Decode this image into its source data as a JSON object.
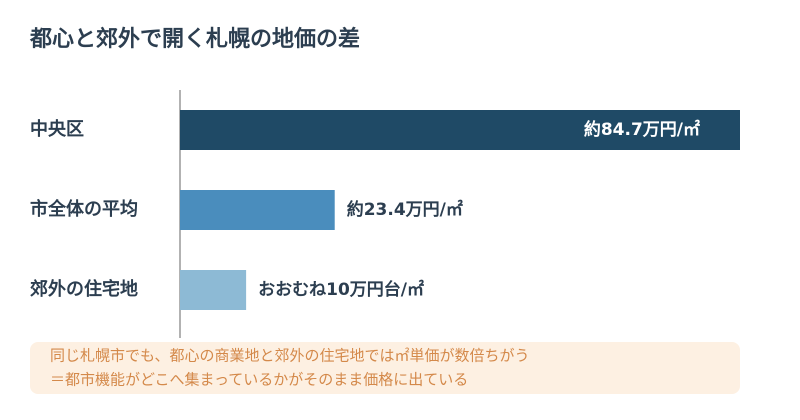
{
  "chart_data": {
    "type": "hbar",
    "title": "都心と郊外で開く札幌の地価の差",
    "categories": [
      "中央区",
      "市全体の平均",
      "郊外の住宅地"
    ],
    "values": [
      84.7,
      23.4,
      10
    ],
    "value_labels": [
      "約84.7万円/㎡",
      "約23.4万円/㎡",
      "おおむね10万円台/㎡"
    ],
    "colors": [
      "#1f4a66",
      "#4a8dbd",
      "#8dbad5"
    ],
    "annotations": [
      "同じ札幌市でも、都心の商業地と郊外の住宅地では㎡単価が数倍ちがう",
      "＝都市機能がどこへ集まっているかがそのまま価格に出ている"
    ]
  }
}
